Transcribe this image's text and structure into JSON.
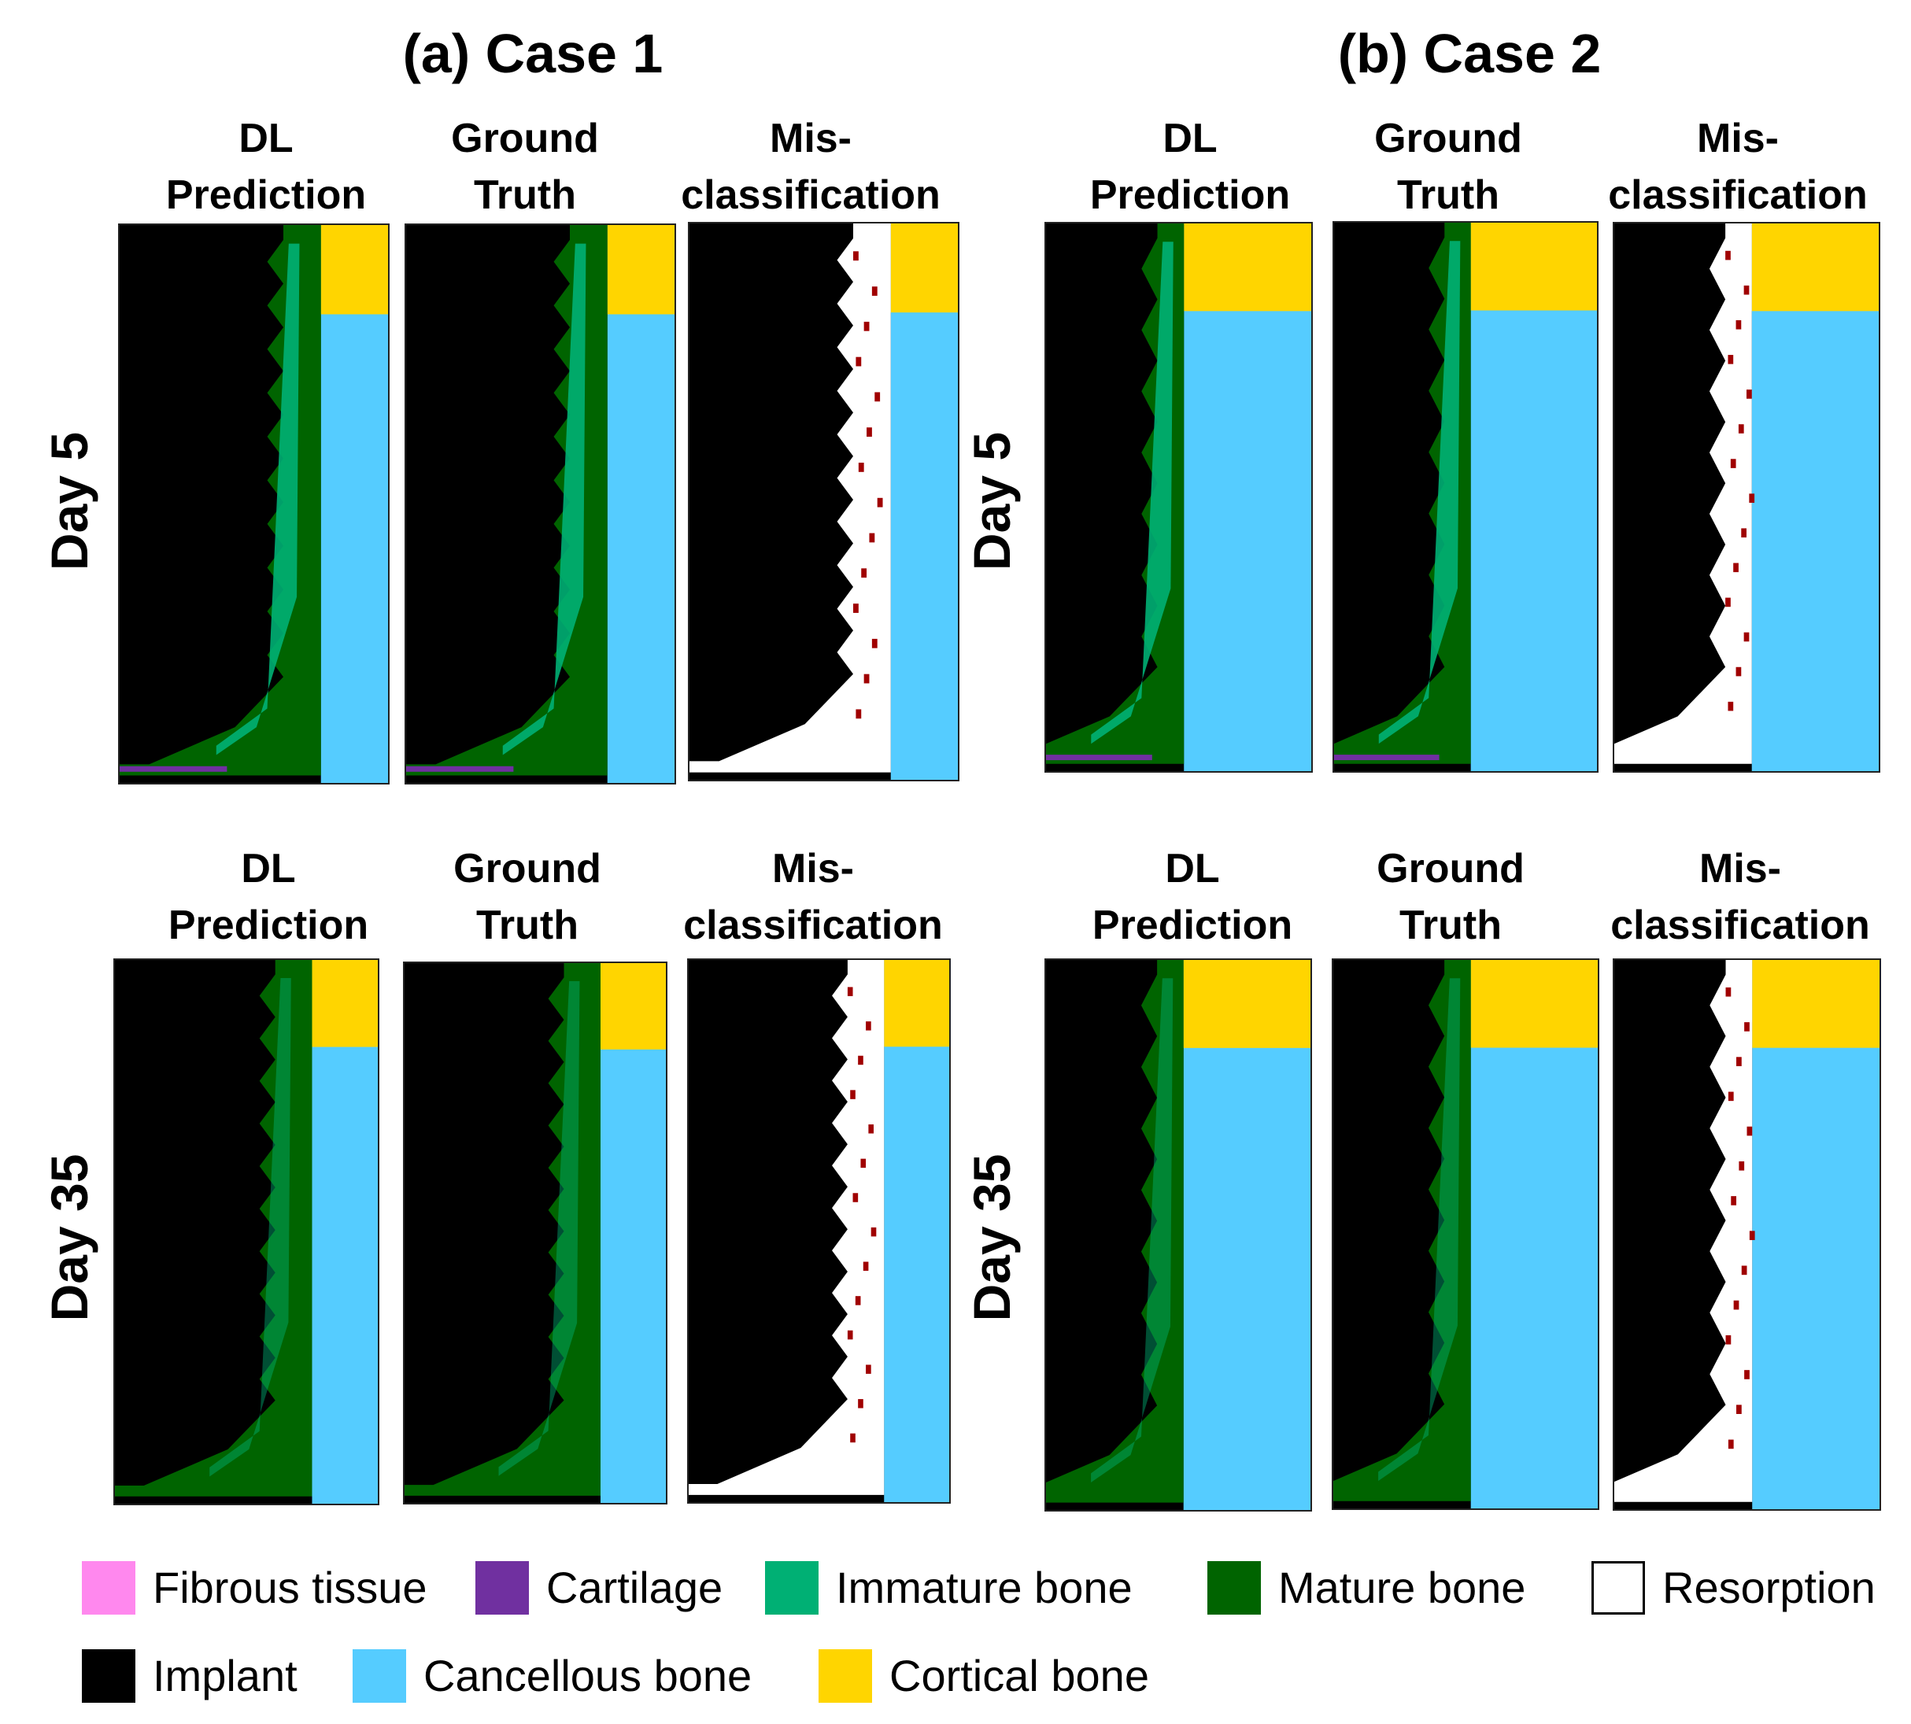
{
  "cases": [
    {
      "title": "(a) Case 1"
    },
    {
      "title": "(b) Case 2"
    }
  ],
  "columns": {
    "dl": [
      "DL",
      "Prediction"
    ],
    "gt": [
      "Ground",
      "Truth"
    ],
    "mis": [
      "Mis-",
      "classification"
    ]
  },
  "rows": [
    {
      "label": "Day 5"
    },
    {
      "label": "Day 35"
    }
  ],
  "legend": [
    {
      "label": "Fibrous tissue",
      "color": "#ff88ee"
    },
    {
      "label": "Cartilage",
      "color": "#7030a0"
    },
    {
      "label": "Immature bone",
      "color": "#00b074"
    },
    {
      "label": "Mature bone",
      "color": "#006400"
    },
    {
      "label": "Resorption",
      "color": "#ffffff"
    },
    {
      "label": "Implant",
      "color": "#000000"
    },
    {
      "label": "Cancellous bone",
      "color": "#55ccff"
    },
    {
      "label": "Cortical bone",
      "color": "#ffd500"
    }
  ],
  "colors": {
    "implant": "#000000",
    "immature": "#00b074",
    "mature": "#006400",
    "cartilage": "#7030a0",
    "fibrous": "#ff88ee",
    "resorption": "#ffffff",
    "cancellous": "#55ccff",
    "cortical": "#ffd500",
    "misclass": "#a00000"
  }
}
